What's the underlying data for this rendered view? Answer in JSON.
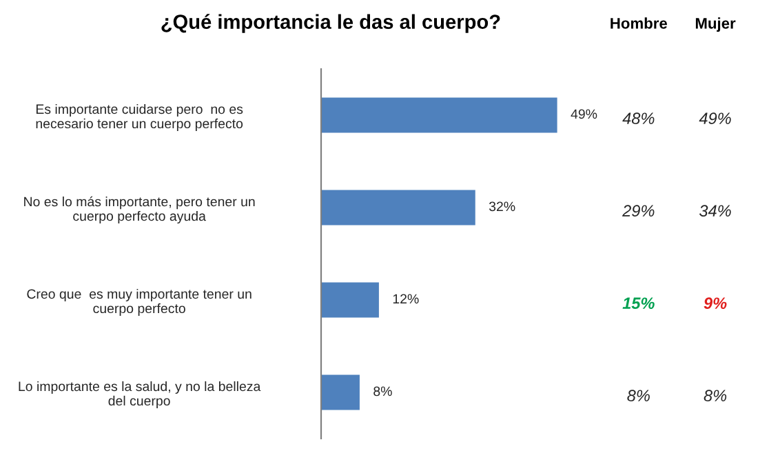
{
  "chart_data": [
    {
      "type": "bar",
      "orientation": "horizontal",
      "title": "¿Qué importancia le das al cuerpo?",
      "categories": [
        "Es importante cuidarse pero  no es\nnecesario tener un cuerpo perfecto",
        "No es lo más importante, pero tener un\ncuerpo perfecto ayuda",
        "Creo que  es muy importante tener un\ncuerpo perfecto",
        "Lo importante es la salud, y no la belleza\ndel cuerpo"
      ],
      "values": [
        49,
        32,
        12,
        8
      ],
      "value_labels": [
        "49%",
        "32%",
        "12%",
        "8%"
      ],
      "color": "#4f81bd",
      "grid": false,
      "legend": false
    },
    {
      "type": "other",
      "annotations": [
        "Hombre",
        "Mujer",
        "48%",
        "49%",
        "29%",
        "34%",
        "15%",
        "9%",
        "8%",
        "8%"
      ],
      "colors": [
        "#000000",
        "#000000",
        "#262626",
        "#262626",
        "#262626",
        "#262626",
        "#00a050",
        "#e0201e",
        "#262626",
        "#262626"
      ]
    }
  ]
}
